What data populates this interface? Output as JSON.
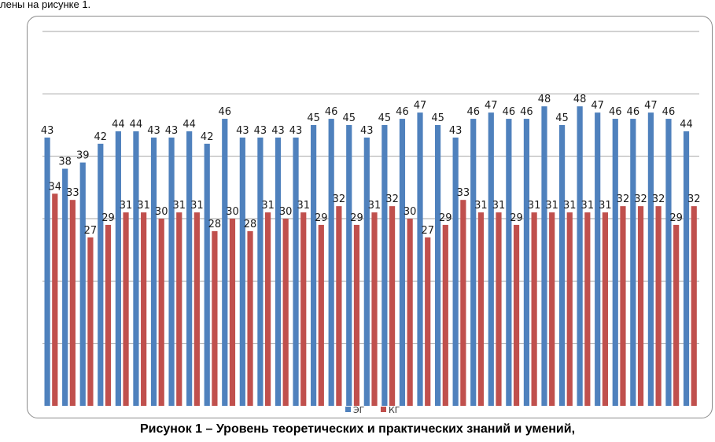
{
  "page": {
    "top_text": "лены на рисунке 1.",
    "caption": "Рисунок 1 – Уровень теоретических и практических знаний и умений,"
  },
  "colors": {
    "eg": "#4f81bd",
    "kg": "#c0504d",
    "grid": "#a6a6a6",
    "frame": "#8a8a8a"
  },
  "chart_data": {
    "type": "bar",
    "ylim": [
      0,
      60
    ],
    "grid": true,
    "y_gridlines": [
      10,
      20,
      30,
      40,
      50,
      60
    ],
    "legend_position": "bottom",
    "series": [
      {
        "name": "ЭГ",
        "values": [
          43,
          38,
          39,
          42,
          44,
          44,
          43,
          43,
          44,
          42,
          46,
          43,
          43,
          43,
          43,
          45,
          46,
          45,
          43,
          45,
          46,
          47,
          45,
          43,
          46,
          47,
          46,
          46,
          48,
          45,
          48,
          47,
          46,
          46,
          47,
          46,
          44
        ]
      },
      {
        "name": "КГ",
        "values": [
          34,
          33,
          27,
          29,
          31,
          31,
          30,
          31,
          31,
          28,
          30,
          28,
          31,
          30,
          31,
          29,
          32,
          29,
          31,
          32,
          30,
          27,
          29,
          33,
          31,
          31,
          29,
          31,
          31,
          31,
          31,
          31,
          32,
          32,
          32,
          29,
          32
        ]
      }
    ]
  }
}
